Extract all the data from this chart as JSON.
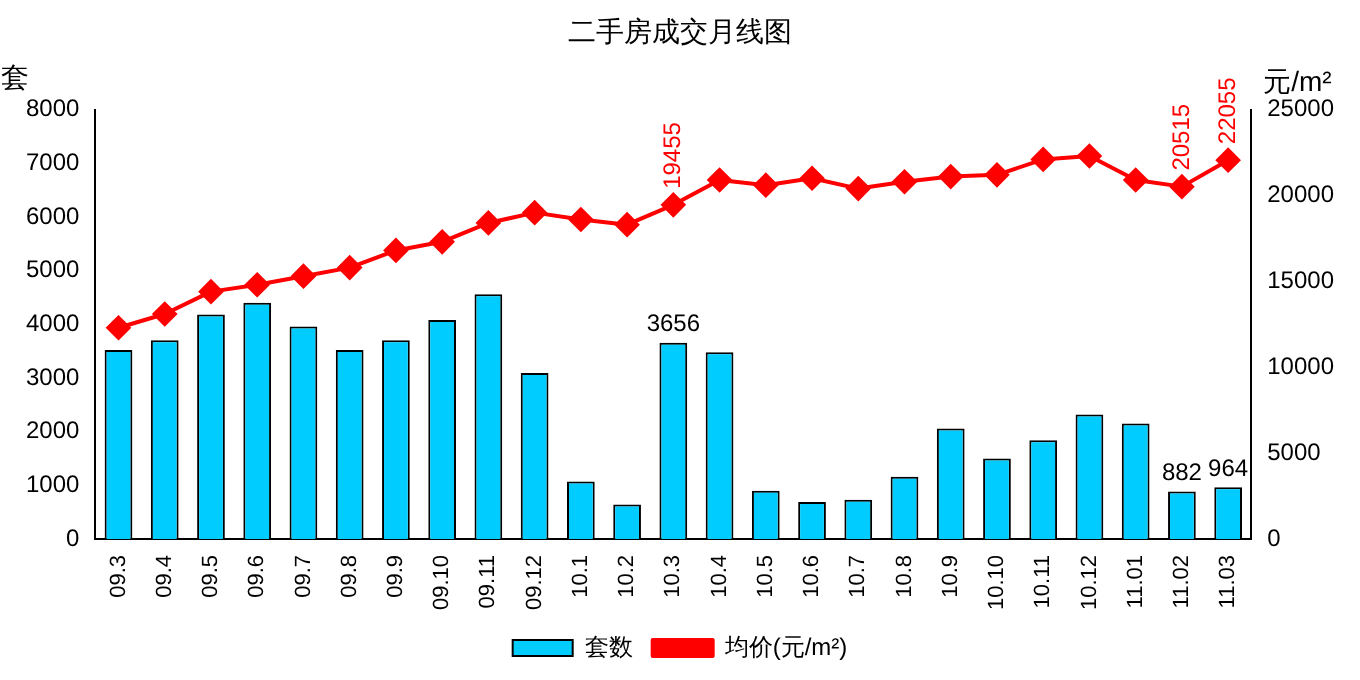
{
  "chart_data": {
    "type": "bar",
    "title": "二手房成交月线图",
    "ylabel": "套",
    "y2label": "元/m²",
    "categories": [
      "09.3",
      "09.4",
      "09.5",
      "09.6",
      "09.7",
      "09.8",
      "09.9",
      "09.10",
      "09.11",
      "09.12",
      "10.1",
      "10.2",
      "10.3",
      "10.4",
      "10.5",
      "10.6",
      "10.7",
      "10.8",
      "10.9",
      "10.10",
      "10.11",
      "10.12",
      "11.01",
      "11.02",
      "11.03"
    ],
    "series": [
      {
        "name": "套数",
        "color": "#00ccff",
        "values": [
          3520,
          3700,
          4180,
          4400,
          3960,
          3520,
          3700,
          4080,
          4560,
          3090,
          1070,
          640,
          3656,
          3480,
          900,
          690,
          730,
          1160,
          2060,
          1500,
          1840,
          2320,
          2150,
          882,
          964
        ],
        "value_labels": [
          null,
          null,
          null,
          null,
          null,
          null,
          null,
          null,
          null,
          null,
          null,
          null,
          "3656",
          null,
          null,
          null,
          null,
          null,
          null,
          null,
          null,
          null,
          null,
          "882",
          "964"
        ]
      },
      {
        "name": "均价(元/m²)",
        "type": "line",
        "axis": "y2",
        "color": "#ff0000",
        "marker": "diamond",
        "values": [
          12300,
          13100,
          14400,
          14800,
          15300,
          15800,
          16800,
          17300,
          18400,
          19000,
          18600,
          18300,
          19455,
          20900,
          20600,
          21000,
          20400,
          20800,
          21100,
          21200,
          22100,
          22300,
          20900,
          20515,
          22055
        ],
        "value_labels": [
          null,
          null,
          null,
          null,
          null,
          null,
          null,
          null,
          null,
          null,
          null,
          null,
          "19455",
          null,
          null,
          null,
          null,
          null,
          null,
          null,
          null,
          null,
          null,
          "20515",
          "22055"
        ]
      }
    ],
    "ylim": [
      0,
      8000
    ],
    "yticks": [
      0,
      1000,
      2000,
      3000,
      4000,
      5000,
      6000,
      7000,
      8000
    ],
    "y2lim": [
      0,
      25000
    ],
    "y2ticks": [
      0,
      5000,
      10000,
      15000,
      20000,
      25000
    ],
    "grid": false,
    "legend": "bottom"
  }
}
